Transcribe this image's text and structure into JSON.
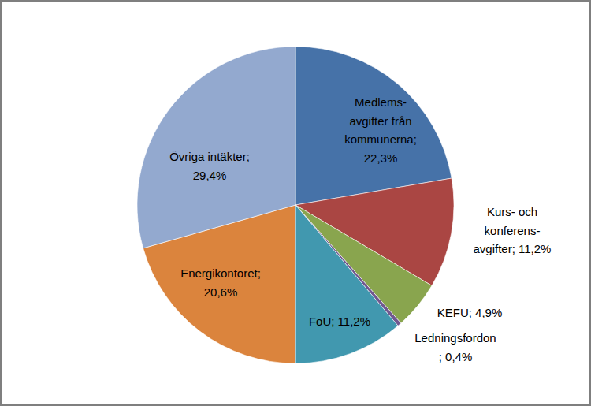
{
  "chart_data": {
    "type": "pie",
    "categories": [
      "Medlems-avgifter från kommunerna;",
      "Kurs- och konferens-avgifter;",
      "KEFU;",
      "Ledningsfordon",
      "FoU;",
      "Energikontoret;",
      "Övriga intäkter;"
    ],
    "values": [
      22.3,
      11.2,
      4.9,
      0.4,
      11.2,
      20.6,
      29.4
    ],
    "value_labels": [
      "22,3%",
      "11,2%",
      "4,9%",
      "; 0,4%",
      "11,2%",
      "20,6%",
      "29,4%"
    ],
    "colors": [
      "#4672a8",
      "#aa4643",
      "#89a54e",
      "#71588f",
      "#4198af",
      "#db843d",
      "#93a9cf"
    ],
    "data_labels": true
  }
}
